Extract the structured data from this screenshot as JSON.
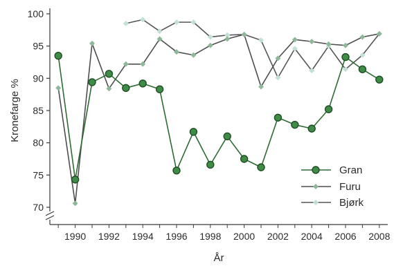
{
  "chart_data": {
    "type": "line",
    "title": "",
    "xlabel": "År",
    "ylabel": "Kronefarge %",
    "xlim": [
      1988.5,
      2008.5
    ],
    "ylim": [
      70,
      100
    ],
    "y_axis_break": true,
    "xticks": [
      "1990",
      "1992",
      "1994",
      "1996",
      "1998",
      "2000",
      "2002",
      "2004",
      "2006",
      "2008"
    ],
    "yticks": [
      "70",
      "75",
      "80",
      "85",
      "90",
      "95",
      "100"
    ],
    "legend_position": "bottom-right",
    "series": [
      {
        "name": "Gran",
        "color": "#2e6b34",
        "marker_fill": "#3f8c46",
        "x": [
          1989,
          1990,
          1991,
          1992,
          1993,
          1994,
          1995,
          1996,
          1997,
          1998,
          1999,
          2000,
          2001,
          2002,
          2003,
          2004,
          2005,
          2006,
          2007,
          2008
        ],
        "values": [
          93.5,
          74.3,
          89.4,
          90.7,
          88.5,
          89.2,
          88.3,
          75.7,
          81.7,
          76.6,
          81.0,
          77.5,
          76.2,
          83.9,
          82.8,
          82.2,
          85.2,
          93.3,
          91.4,
          89.8
        ]
      },
      {
        "name": "Furu",
        "color": "#4d4d4d",
        "marker_fill": "#8fb89a",
        "x": [
          1989,
          1990,
          1991,
          1992,
          1993,
          1994,
          1995,
          1996,
          1997,
          1998,
          1999,
          2000,
          2001,
          2002,
          2003,
          2004,
          2005,
          2006,
          2007,
          2008
        ],
        "values": [
          88.5,
          70.6,
          95.4,
          88.4,
          92.2,
          92.2,
          96.1,
          94.1,
          93.6,
          95.1,
          96.1,
          96.8,
          88.7,
          93.1,
          96.0,
          95.7,
          95.3,
          95.1,
          96.4,
          96.9
        ]
      },
      {
        "name": "Bjørk",
        "color": "#555555",
        "marker_fill": "#c2e0d5",
        "x": [
          1993,
          1994,
          1995,
          1996,
          1997,
          1998,
          1999,
          2000,
          2001,
          2002,
          2003,
          2004,
          2005,
          2006,
          2007,
          2008
        ],
        "values": [
          98.5,
          99.1,
          97.3,
          98.7,
          98.7,
          96.4,
          96.7,
          96.8,
          95.9,
          90.1,
          94.6,
          91.2,
          95.0,
          91.4,
          93.6,
          96.9
        ]
      }
    ]
  }
}
